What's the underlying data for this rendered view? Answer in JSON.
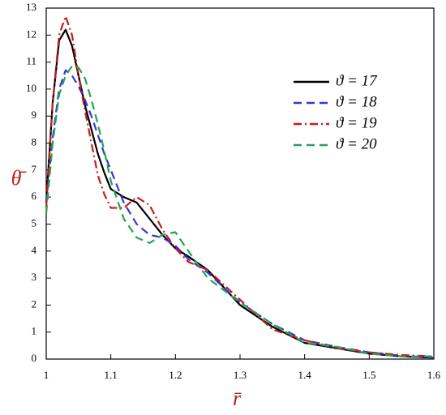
{
  "chart_data": {
    "type": "line",
    "x_label": "r̄",
    "y_label": "θ̄",
    "x": [
      1,
      1.01,
      1.02,
      1.03,
      1.04,
      1.05,
      1.06,
      1.07,
      1.08,
      1.09,
      1.1,
      1.12,
      1.14,
      1.16,
      1.18,
      1.2,
      1.22,
      1.25,
      1.3,
      1.35,
      1.4,
      1.45,
      1.5,
      1.55,
      1.6
    ],
    "series": [
      {
        "name": "ϑ = 17",
        "color": "#000000",
        "dash": "solid",
        "values": [
          5.8,
          9.5,
          11.8,
          12.2,
          11.6,
          10.5,
          9.4,
          8.5,
          7.6,
          6.9,
          6.3,
          6.0,
          5.8,
          5.2,
          4.6,
          4.1,
          3.8,
          3.3,
          2.0,
          1.2,
          0.6,
          0.4,
          0.2,
          0.1,
          0.05
        ]
      },
      {
        "name": "ϑ = 18",
        "color": "#3535dd",
        "dash": "dashed",
        "values": [
          5.8,
          8.2,
          10.0,
          10.7,
          10.5,
          10.1,
          9.6,
          9.0,
          8.3,
          7.6,
          7.0,
          5.8,
          5.0,
          4.6,
          4.5,
          4.2,
          3.7,
          3.2,
          2.1,
          1.3,
          0.7,
          0.45,
          0.25,
          0.12,
          0.05
        ]
      },
      {
        "name": "ϑ = 19",
        "color": "#cc1a1a",
        "dash": "dashdot",
        "values": [
          5.6,
          9.5,
          12.0,
          12.7,
          12.0,
          10.5,
          9.2,
          8.0,
          6.8,
          6.1,
          5.6,
          5.6,
          6.0,
          5.7,
          4.8,
          4.1,
          3.6,
          3.3,
          2.2,
          1.1,
          0.7,
          0.4,
          0.25,
          0.15,
          0.1
        ]
      },
      {
        "name": "ϑ = 20",
        "color": "#22a455",
        "dash": "dashed",
        "values": [
          5.4,
          8.0,
          9.8,
          10.5,
          10.85,
          10.8,
          10.4,
          9.6,
          8.7,
          7.7,
          6.6,
          5.2,
          4.5,
          4.3,
          4.6,
          4.7,
          4.0,
          3.0,
          2.1,
          1.3,
          0.6,
          0.45,
          0.2,
          0.1,
          0.1
        ]
      }
    ],
    "xlim": [
      1,
      1.6
    ],
    "xticks": [
      1,
      1.1,
      1.2,
      1.3,
      1.4,
      1.5,
      1.6
    ],
    "ylim": [
      0,
      13
    ],
    "yticks": [
      0,
      1,
      2,
      3,
      4,
      5,
      6,
      7,
      8,
      9,
      10,
      11,
      12,
      13
    ],
    "legend": "upper right"
  }
}
